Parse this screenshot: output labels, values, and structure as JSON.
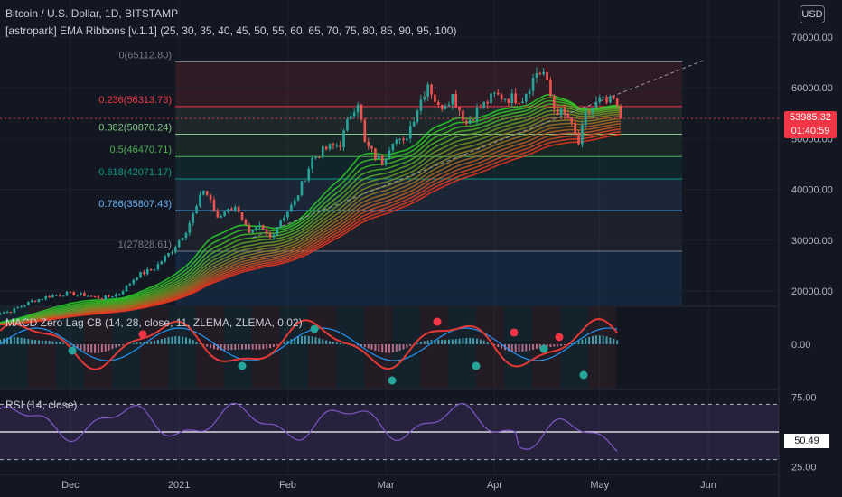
{
  "header": {
    "title": "Bitcoin / U.S. Dollar, 1D, BITSTAMP",
    "indicator": "[astropark] EMA Ribbons [v.1.1] (25, 30, 35, 40, 45, 50, 55, 60, 65, 70, 75, 80, 85, 90, 95, 100)",
    "currency_button": "USD"
  },
  "price_label": {
    "value": "53985.32",
    "countdown": "01:40:59"
  },
  "macd_label": "MACD Zero Lag CB (14, 28, close, 11, ZLEMA, ZLEMA, 0.02)",
  "rsi_label": "RSI (14, close)",
  "rsi_value": "50.49",
  "colors": {
    "background": "#131722",
    "up": "#26a69a",
    "down": "#ef5350",
    "rsi": "#7e57c2",
    "macd_line": "#e53935"
  },
  "chart_data": [
    {
      "type": "candlestick",
      "title": "Bitcoin / U.S. Dollar, 1D, BITSTAMP",
      "x_ticks": [
        "Dec",
        "2021",
        "Feb",
        "Mar",
        "Apr",
        "May",
        "Jun"
      ],
      "y_ticks": [
        "70000.00",
        "60000.00",
        "50000.00",
        "40000.00",
        "30000.00",
        "20000.00"
      ],
      "ylim": [
        17000,
        75000
      ],
      "last_price": 53985.32,
      "close_anchors": [
        {
          "d": "Nov 8",
          "v": 15500
        },
        {
          "d": "Nov 14",
          "v": 16000
        },
        {
          "d": "Nov 20",
          "v": 18000
        },
        {
          "d": "Nov 25",
          "v": 19000
        },
        {
          "d": "Nov 30",
          "v": 19500
        },
        {
          "d": "Dec 5",
          "v": 19200
        },
        {
          "d": "Dec 10",
          "v": 18500
        },
        {
          "d": "Dec 15",
          "v": 19500
        },
        {
          "d": "Dec 20",
          "v": 23000
        },
        {
          "d": "Dec 25",
          "v": 24500
        },
        {
          "d": "Dec 30",
          "v": 28000
        },
        {
          "d": "Jan 3",
          "v": 32000
        },
        {
          "d": "Jan 6",
          "v": 36500
        },
        {
          "d": "Jan 8",
          "v": 40000
        },
        {
          "d": "Jan 10",
          "v": 38000
        },
        {
          "d": "Jan 12",
          "v": 34000
        },
        {
          "d": "Jan 15",
          "v": 36500
        },
        {
          "d": "Jan 18",
          "v": 36000
        },
        {
          "d": "Jan 21",
          "v": 31000
        },
        {
          "d": "Jan 24",
          "v": 32500
        },
        {
          "d": "Jan 27",
          "v": 30500
        },
        {
          "d": "Jan 30",
          "v": 34000
        },
        {
          "d": "Feb 3",
          "v": 37500
        },
        {
          "d": "Feb 8",
          "v": 46000
        },
        {
          "d": "Feb 12",
          "v": 48000
        },
        {
          "d": "Feb 16",
          "v": 49000
        },
        {
          "d": "Feb 19",
          "v": 55000
        },
        {
          "d": "Feb 21",
          "v": 57500
        },
        {
          "d": "Feb 23",
          "v": 49000
        },
        {
          "d": "Feb 26",
          "v": 46500
        },
        {
          "d": "Feb 28",
          "v": 45500
        },
        {
          "d": "Mar 3",
          "v": 50000
        },
        {
          "d": "Mar 6",
          "v": 49000
        },
        {
          "d": "Mar 10",
          "v": 56000
        },
        {
          "d": "Mar 13",
          "v": 61000
        },
        {
          "d": "Mar 16",
          "v": 56000
        },
        {
          "d": "Mar 20",
          "v": 58500
        },
        {
          "d": "Mar 24",
          "v": 53000
        },
        {
          "d": "Mar 27",
          "v": 55500
        },
        {
          "d": "Apr 1",
          "v": 58500
        },
        {
          "d": "Apr 5",
          "v": 58000
        },
        {
          "d": "Apr 9",
          "v": 58000
        },
        {
          "d": "Apr 13",
          "v": 63000
        },
        {
          "d": "Apr 15",
          "v": 63000
        },
        {
          "d": "Apr 18",
          "v": 56000
        },
        {
          "d": "Apr 22",
          "v": 54000
        },
        {
          "d": "Apr 25",
          "v": 49000
        },
        {
          "d": "Apr 27",
          "v": 54500
        },
        {
          "d": "May 1",
          "v": 57500
        },
        {
          "d": "May 3",
          "v": 57000
        },
        {
          "d": "May 5",
          "v": 57500
        },
        {
          "d": "May 7",
          "v": 53985
        }
      ]
    },
    {
      "type": "table",
      "title": "Fibonacci retracement",
      "levels": [
        {
          "ratio": "0",
          "label": "0(65112.80)",
          "price": 65112.8,
          "color": "#787b86"
        },
        {
          "ratio": "0.236",
          "label": "0.236(56313.73)",
          "price": 56313.73,
          "color": "#f23645"
        },
        {
          "ratio": "0.382",
          "label": "0.382(50870.24)",
          "price": 50870.24,
          "color": "#81c784"
        },
        {
          "ratio": "0.5",
          "label": "0.5(46470.71)",
          "price": 46470.71,
          "color": "#4caf50"
        },
        {
          "ratio": "0.618",
          "label": "0.618(42071.17)",
          "price": 42071.17,
          "color": "#089981"
        },
        {
          "ratio": "0.786",
          "label": "0.786(35807.43)",
          "price": 35807.43,
          "color": "#64b5f6"
        },
        {
          "ratio": "1",
          "label": "1(27828.61)",
          "price": 27828.61,
          "color": "#787b86"
        }
      ]
    },
    {
      "type": "line",
      "title": "MACD Zero Lag CB (14, 28, close, 11, ZLEMA, ZLEMA, 0.02)",
      "y_ticks": [
        "0.00"
      ],
      "series": []
    },
    {
      "type": "line",
      "title": "RSI (14, close)",
      "y_ticks": [
        "75.00",
        "25.00"
      ],
      "ylim": [
        20,
        80
      ],
      "bands": [
        70,
        30
      ],
      "last_value": 50.49
    }
  ]
}
